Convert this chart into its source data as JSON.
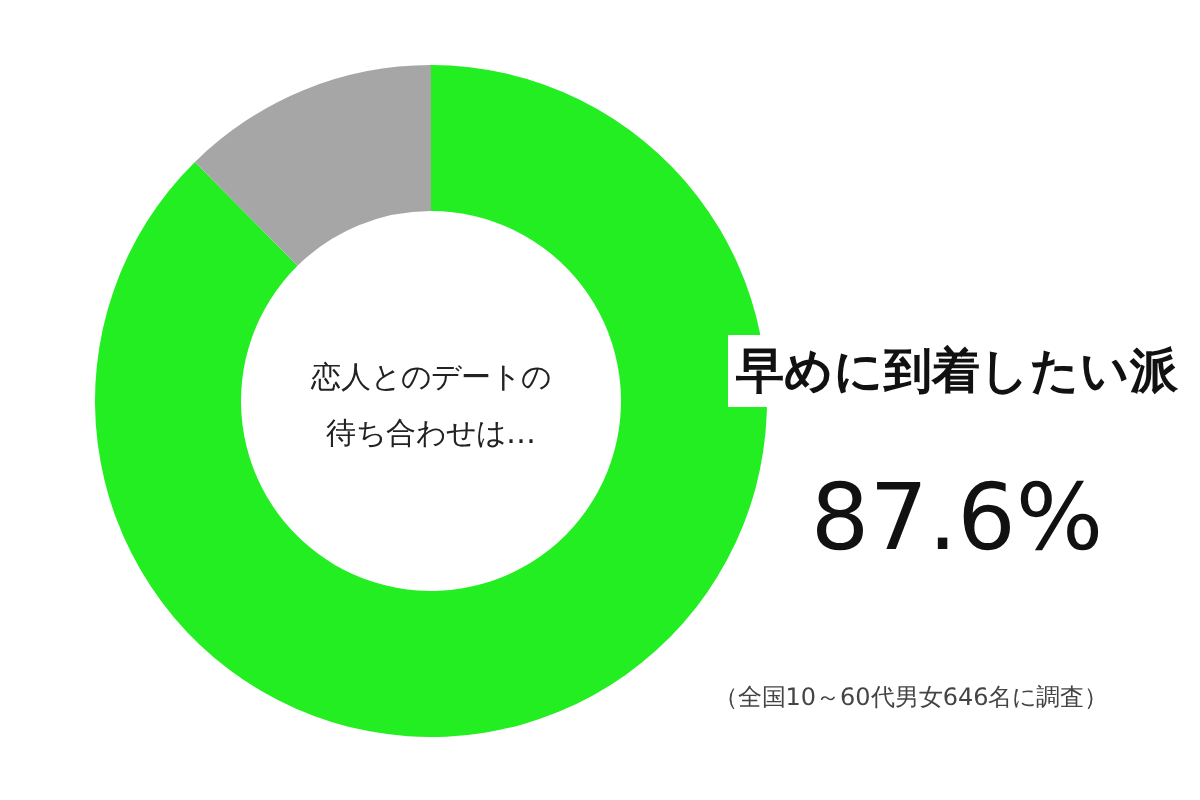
{
  "chart_data": {
    "type": "donut",
    "title": "恋人とのデートの待ち合わせは…",
    "categories": [
      "早めに到着したい派",
      null
    ],
    "values": [
      87.6,
      12.4
    ],
    "colors": [
      "#22ee22",
      "#a6a6a6"
    ],
    "value_labels": [
      "87.6%",
      null
    ],
    "annotations": [
      "（全国10～60代男女646名に調査）"
    ]
  }
}
